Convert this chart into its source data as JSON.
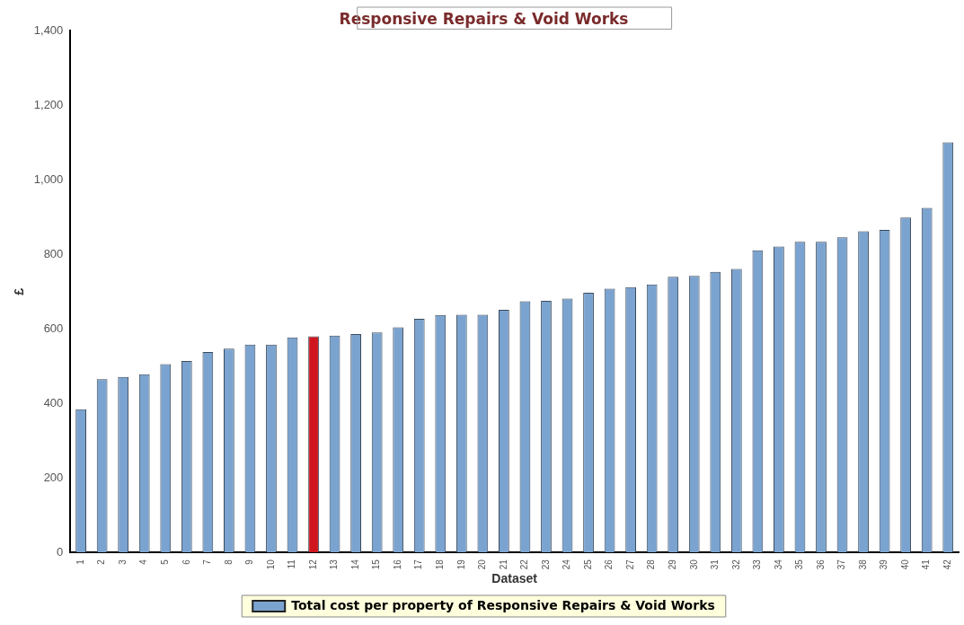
{
  "chart_data": {
    "type": "bar",
    "title": "Responsive Repairs & Void Works",
    "xlabel": "Dataset",
    "ylabel": "£",
    "categories": [
      "1",
      "2",
      "3",
      "4",
      "5",
      "6",
      "7",
      "8",
      "9",
      "10",
      "11",
      "12",
      "13",
      "14",
      "15",
      "16",
      "17",
      "18",
      "19",
      "20",
      "21",
      "22",
      "23",
      "24",
      "25",
      "26",
      "27",
      "28",
      "29",
      "30",
      "31",
      "32",
      "33",
      "34",
      "35",
      "36",
      "37",
      "38",
      "39",
      "40",
      "41",
      "42"
    ],
    "series": [
      {
        "name": "Total cost per property of Responsive Repairs & Void Works",
        "color": "#7ba3d0",
        "colors": [
          "#7ba3d0",
          "#7ba3d0",
          "#7ba3d0",
          "#7ba3d0",
          "#7ba3d0",
          "#7ba3d0",
          "#7ba3d0",
          "#7ba3d0",
          "#7ba3d0",
          "#7ba3d0",
          "#7ba3d0",
          "#d0161e",
          "#7ba3d0",
          "#7ba3d0",
          "#7ba3d0",
          "#7ba3d0",
          "#7ba3d0",
          "#7ba3d0",
          "#7ba3d0",
          "#7ba3d0",
          "#7ba3d0",
          "#7ba3d0",
          "#7ba3d0",
          "#7ba3d0",
          "#7ba3d0",
          "#7ba3d0",
          "#7ba3d0",
          "#7ba3d0",
          "#7ba3d0",
          "#7ba3d0",
          "#7ba3d0",
          "#7ba3d0",
          "#7ba3d0",
          "#7ba3d0",
          "#7ba3d0",
          "#7ba3d0",
          "#7ba3d0",
          "#7ba3d0",
          "#7ba3d0",
          "#7ba3d0",
          "#7ba3d0",
          "#7ba3d0"
        ],
        "values": [
          384,
          465,
          471,
          478,
          505,
          514,
          538,
          547,
          558,
          558,
          577,
          580,
          582,
          586,
          590,
          604,
          627,
          637,
          638,
          638,
          651,
          674,
          675,
          681,
          697,
          708,
          712,
          719,
          740,
          742,
          753,
          761,
          811,
          821,
          834,
          834,
          846,
          862,
          866,
          899,
          925,
          1101
        ]
      }
    ],
    "ylim": [
      0,
      1400
    ],
    "yticks": [
      0,
      200,
      400,
      600,
      800,
      {
        "value": 1000,
        "label": "1,000"
      },
      {
        "value": 1200,
        "label": "1,200"
      },
      {
        "value": 1400,
        "label": "1,400"
      }
    ],
    "grid": false,
    "legend": "bottom"
  }
}
